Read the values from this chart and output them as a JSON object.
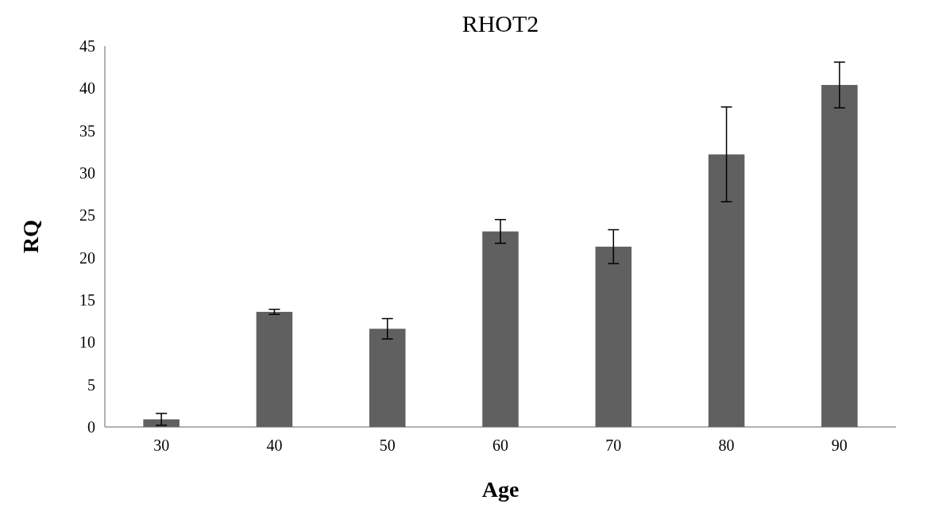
{
  "chart_data": {
    "type": "bar",
    "title": "RHOT2",
    "xlabel": "Age",
    "ylabel": "RQ",
    "categories": [
      "30",
      "40",
      "50",
      "60",
      "70",
      "80",
      "90"
    ],
    "values": [
      0.9,
      13.6,
      11.6,
      23.1,
      21.3,
      32.2,
      40.4
    ],
    "errors": [
      0.7,
      0.3,
      1.2,
      1.4,
      2.0,
      5.6,
      2.7
    ],
    "color": "#606060",
    "ylim": [
      0,
      45
    ],
    "yticks": [
      0,
      5,
      10,
      15,
      20,
      25,
      30,
      35,
      40,
      45
    ],
    "grid": false
  }
}
